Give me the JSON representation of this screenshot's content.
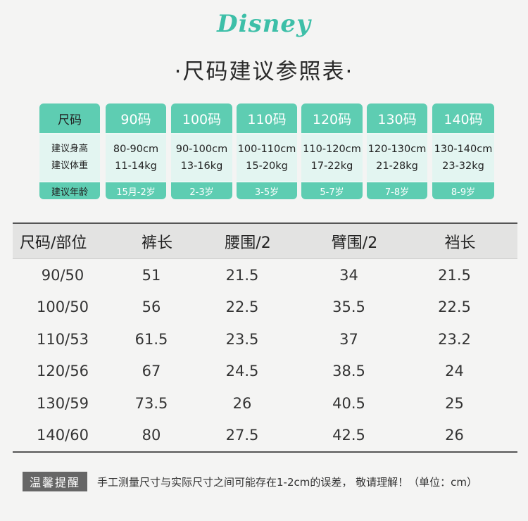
{
  "brand": {
    "logo_text": "Disney",
    "accent": "#5ecdb2"
  },
  "title": "·尺码建议参照表·",
  "recommendation": {
    "row_labels": {
      "size": "尺码",
      "height": "建议身高",
      "weight": "建议体重",
      "age": "建议年龄"
    },
    "columns": [
      {
        "size": "90码",
        "height": "80-90cm",
        "weight": "11-14kg",
        "age": "15月-2岁"
      },
      {
        "size": "100码",
        "height": "90-100cm",
        "weight": "13-16kg",
        "age": "2-3岁"
      },
      {
        "size": "110码",
        "height": "100-110cm",
        "weight": "15-20kg",
        "age": "3-5岁"
      },
      {
        "size": "120码",
        "height": "110-120cm",
        "weight": "17-22kg",
        "age": "5-7岁"
      },
      {
        "size": "130码",
        "height": "120-130cm",
        "weight": "21-28kg",
        "age": "7-8岁"
      },
      {
        "size": "140码",
        "height": "130-140cm",
        "weight": "23-32kg",
        "age": "8-9岁"
      }
    ]
  },
  "measurements": {
    "headers": [
      "尺码/部位",
      "裤长",
      "腰围/2",
      "臂围/2",
      "裆长"
    ],
    "rows": [
      [
        "90/50",
        "51",
        "21.5",
        "34",
        "21.5"
      ],
      [
        "100/50",
        "56",
        "22.5",
        "35.5",
        "22.5"
      ],
      [
        "110/53",
        "61.5",
        "23.5",
        "37",
        "23.2"
      ],
      [
        "120/56",
        "67",
        "24.5",
        "38.5",
        "24"
      ],
      [
        "130/59",
        "73.5",
        "26",
        "40.5",
        "25"
      ],
      [
        "140/60",
        "80",
        "27.5",
        "42.5",
        "26"
      ]
    ]
  },
  "note": {
    "badge": "温馨提醒",
    "text": "手工测量尺寸与实际尺寸之间可能存在1-2cm的误差， 敬请理解！（单位：cm）"
  }
}
